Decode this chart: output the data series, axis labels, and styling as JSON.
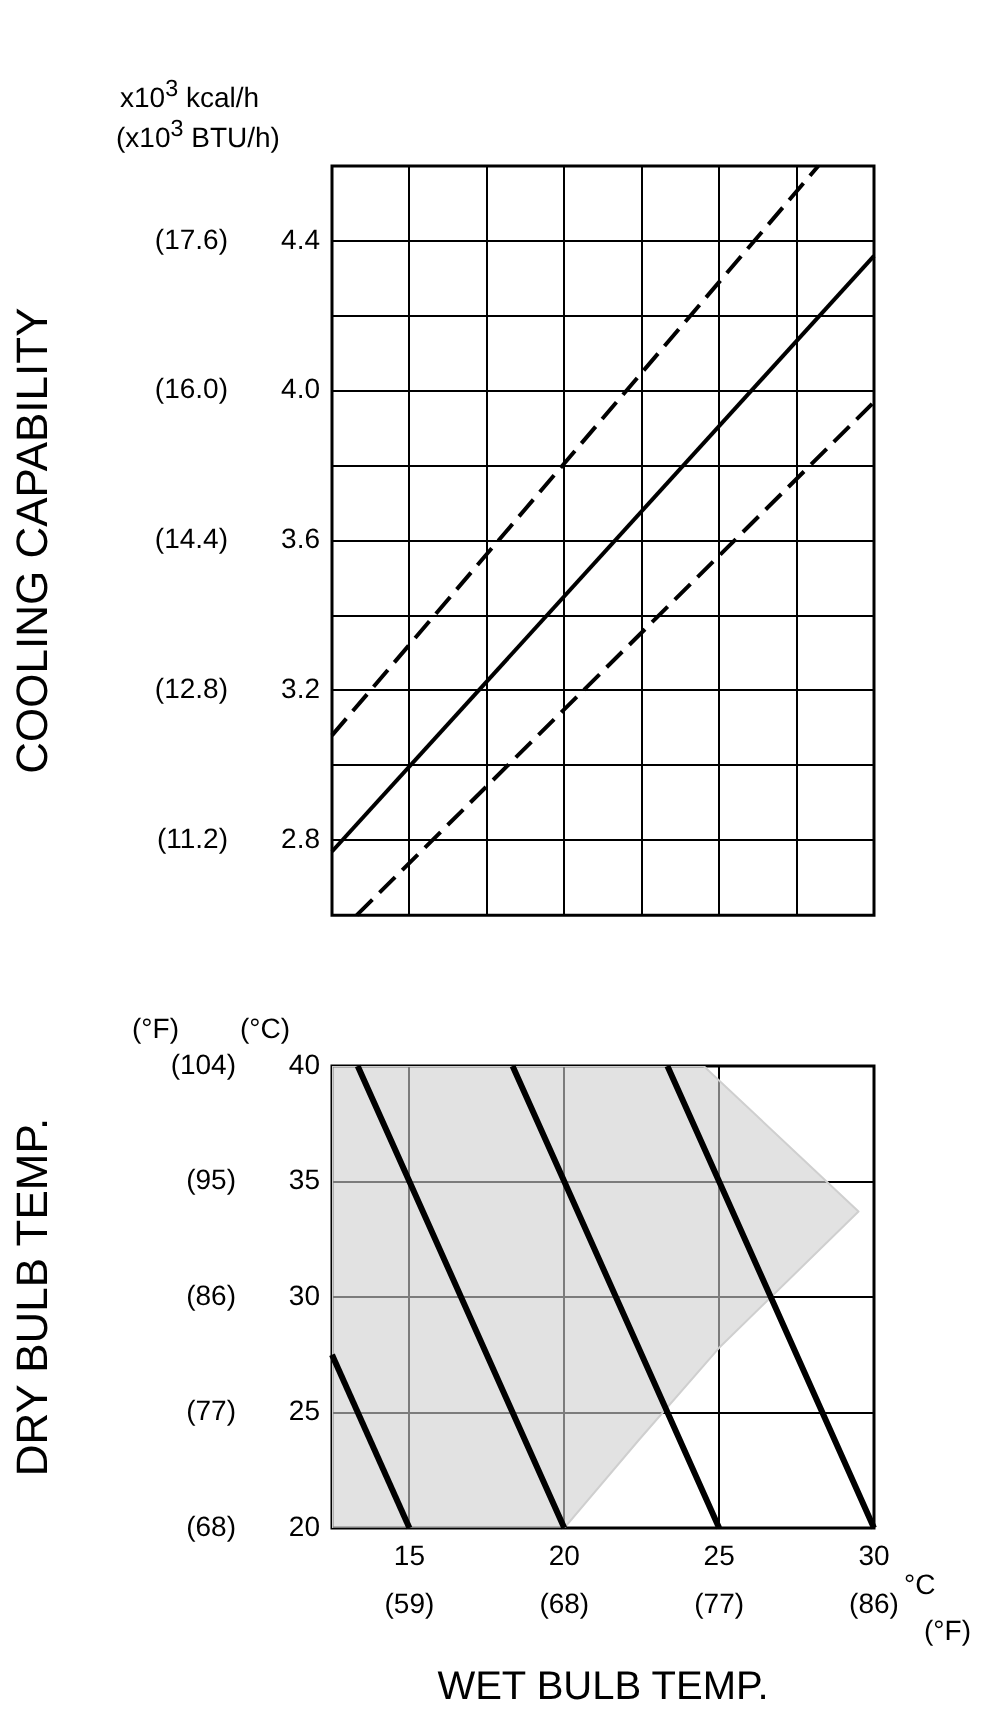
{
  "chart_data": [
    {
      "type": "line",
      "y2label": "COOLING CAPABILITY",
      "annotations": [
        "x10$^{3}$ kcal/h",
        "(x10$^{3}$ BTU/h)"
      ],
      "xlim": [
        12.5,
        30
      ],
      "xticks": [
        {
          "value": 12.5,
          "label": null
        },
        {
          "value": 15,
          "label": null
        },
        {
          "value": 17.5,
          "label": null
        },
        {
          "value": 20,
          "label": null
        },
        {
          "value": 22.5,
          "label": null
        },
        {
          "value": 25,
          "label": null
        },
        {
          "value": 27.5,
          "label": null
        },
        {
          "value": 30,
          "label": null
        }
      ],
      "ylim": [
        2.6,
        4.6
      ],
      "yticks": [
        2.8,
        {
          "value": 3.0,
          "label": null
        },
        3.2,
        {
          "value": 3.4,
          "label": null
        },
        3.6,
        {
          "value": 3.8,
          "label": null
        },
        {
          "value": 4.0,
          "label": "4.0"
        },
        {
          "value": 4.2,
          "label": null
        },
        4.4
      ],
      "y2lim": [
        10.4,
        18.4
      ],
      "y2ticks": [
        {
          "value": 11.2,
          "label": "(11.2)"
        },
        {
          "value": 12.8,
          "label": "(12.8)"
        },
        {
          "value": 14.4,
          "label": "(14.4)"
        },
        {
          "value": 16,
          "label": "(16.0)"
        },
        {
          "value": 17.6,
          "label": "(17.6)"
        }
      ],
      "tick_labels": "y",
      "grid": true,
      "legend": false,
      "marker": "none",
      "series": [
        {
          "type": "line",
          "color": "#000000",
          "line_style": "dashed",
          "x": [
            12.5,
            28.2
          ],
          "values": [
            3.08,
            4.6
          ]
        },
        {
          "type": "line",
          "color": "#000000",
          "line_style": "solid",
          "x": [
            12.5,
            30
          ],
          "values": [
            2.77,
            4.36
          ]
        },
        {
          "type": "line",
          "color": "#000000",
          "line_style": "dashed",
          "x": [
            13.3,
            30
          ],
          "values": [
            2.6,
            3.97
          ]
        }
      ]
    },
    {
      "type": "line",
      "xlabel": "WET BULB TEMP.",
      "y2label": "DRY BULB TEMP.",
      "annotations": [
        "(°F)",
        "(°C)",
        "°C",
        "(°F)"
      ],
      "xlim": [
        12.5,
        30
      ],
      "xticks": [
        15,
        20,
        25,
        30
      ],
      "x2lim": [
        54.5,
        86
      ],
      "x2ticks": [
        {
          "value": 59,
          "label": "(59)"
        },
        {
          "value": 68,
          "label": "(68)"
        },
        {
          "value": 77,
          "label": "(77)"
        },
        {
          "value": 86,
          "label": "(86)"
        }
      ],
      "ylim": [
        20,
        40
      ],
      "yticks": [
        20,
        25,
        30,
        35,
        40
      ],
      "y2lim": [
        68,
        104
      ],
      "y2ticks": [
        {
          "value": 68,
          "label": "(68)"
        },
        {
          "value": 77,
          "label": "(77)"
        },
        {
          "value": 86,
          "label": "(86)"
        },
        {
          "value": 95,
          "label": "(95)"
        },
        {
          "value": 104,
          "label": "(104)"
        }
      ],
      "grid": true,
      "legend": false,
      "marker": "none",
      "series": [
        {
          "type": "line",
          "color": "#000000",
          "line_style": "solid",
          "x": [
            12.5,
            15
          ],
          "values": [
            27.5,
            20
          ]
        },
        {
          "type": "line",
          "color": "#000000",
          "line_style": "solid",
          "x": [
            13.33,
            15,
            20
          ],
          "values": [
            40,
            35,
            20
          ]
        },
        {
          "type": "line",
          "color": "#000000",
          "line_style": "solid",
          "x": [
            18.33,
            20,
            25
          ],
          "values": [
            40,
            35,
            20
          ]
        },
        {
          "type": "line",
          "color": "#000000",
          "line_style": "solid",
          "x": [
            23.33,
            25,
            30
          ],
          "values": [
            40,
            35,
            20
          ]
        },
        {
          "type": "area",
          "color": "#cfcfcf",
          "x": [
            12.5,
            12.5,
            24.5,
            29.5,
            25,
            22.4,
            20
          ],
          "values": [
            20,
            40,
            40,
            33.7,
            27.8,
            23.8,
            20
          ]
        }
      ]
    }
  ]
}
